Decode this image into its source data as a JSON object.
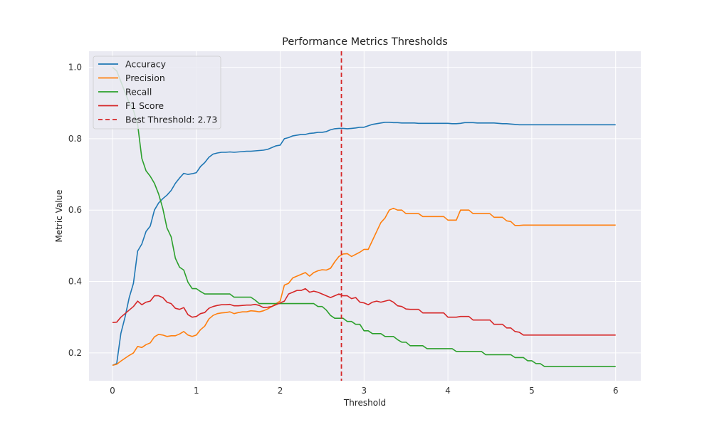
{
  "chart_data": {
    "type": "line",
    "title": "Performance Metrics Thresholds",
    "xlabel": "Threshold",
    "ylabel": "Metric Value",
    "xlim": [
      -0.28,
      6.3
    ],
    "ylim": [
      0.122,
      1.045
    ],
    "xticks": [
      0,
      1,
      2,
      3,
      4,
      5,
      6
    ],
    "xtick_labels": [
      "0",
      "1",
      "2",
      "3",
      "4",
      "5",
      "6"
    ],
    "yticks": [
      0.2,
      0.4,
      0.6,
      0.8,
      1.0
    ],
    "ytick_labels": [
      "0.2",
      "0.4",
      "0.6",
      "0.8",
      "1.0"
    ],
    "grid": true,
    "background": "#eaeaf2",
    "legend_position": "top-left",
    "x": [
      0.0,
      0.05,
      0.1,
      0.15,
      0.2,
      0.25,
      0.3,
      0.35,
      0.4,
      0.45,
      0.5,
      0.55,
      0.6,
      0.65,
      0.7,
      0.75,
      0.8,
      0.85,
      0.9,
      0.95,
      1.0,
      1.05,
      1.1,
      1.15,
      1.2,
      1.25,
      1.3,
      1.35,
      1.4,
      1.45,
      1.5,
      1.55,
      1.6,
      1.65,
      1.7,
      1.75,
      1.8,
      1.85,
      1.9,
      1.95,
      2.0,
      2.05,
      2.1,
      2.15,
      2.2,
      2.25,
      2.3,
      2.35,
      2.4,
      2.45,
      2.5,
      2.55,
      2.6,
      2.65,
      2.7,
      2.75,
      2.8,
      2.85,
      2.9,
      2.95,
      3.0,
      3.05,
      3.1,
      3.15,
      3.2,
      3.25,
      3.3,
      3.35,
      3.4,
      3.45,
      3.5,
      3.55,
      3.6,
      3.65,
      3.7,
      3.75,
      3.8,
      3.85,
      3.9,
      3.95,
      4.0,
      4.05,
      4.1,
      4.15,
      4.2,
      4.25,
      4.3,
      4.35,
      4.4,
      4.45,
      4.5,
      4.55,
      4.6,
      4.65,
      4.7,
      4.75,
      4.8,
      4.85,
      4.9,
      4.95,
      5.0,
      5.05,
      5.1,
      5.15,
      5.2,
      5.25,
      5.3,
      5.35,
      5.4,
      5.45,
      5.5,
      5.55,
      5.6,
      5.65,
      5.7,
      5.75,
      5.8,
      5.85,
      5.9,
      5.95,
      6.0
    ],
    "series": [
      {
        "name": "Accuracy",
        "color": "#1f77b4",
        "values": [
          0.165,
          0.17,
          0.255,
          0.3,
          0.355,
          0.395,
          0.485,
          0.505,
          0.54,
          0.555,
          0.6,
          0.62,
          0.632,
          0.642,
          0.655,
          0.675,
          0.69,
          0.703,
          0.7,
          0.702,
          0.705,
          0.722,
          0.733,
          0.748,
          0.757,
          0.76,
          0.762,
          0.762,
          0.763,
          0.762,
          0.763,
          0.764,
          0.765,
          0.765,
          0.766,
          0.767,
          0.768,
          0.77,
          0.775,
          0.78,
          0.782,
          0.8,
          0.803,
          0.808,
          0.81,
          0.812,
          0.812,
          0.815,
          0.816,
          0.818,
          0.818,
          0.82,
          0.825,
          0.828,
          0.829,
          0.829,
          0.828,
          0.829,
          0.83,
          0.832,
          0.832,
          0.836,
          0.84,
          0.842,
          0.844,
          0.846,
          0.846,
          0.845,
          0.845,
          0.844,
          0.844,
          0.844,
          0.844,
          0.843,
          0.843,
          0.843,
          0.843,
          0.843,
          0.843,
          0.843,
          0.843,
          0.842,
          0.842,
          0.843,
          0.845,
          0.845,
          0.845,
          0.844,
          0.844,
          0.844,
          0.844,
          0.844,
          0.843,
          0.842,
          0.842,
          0.841,
          0.84,
          0.839,
          0.839,
          0.839,
          0.839,
          0.839,
          0.839,
          0.839,
          0.839,
          0.839,
          0.839,
          0.839,
          0.839,
          0.839,
          0.839,
          0.839,
          0.839,
          0.839,
          0.839,
          0.839,
          0.839,
          0.839,
          0.839,
          0.839,
          0.839
        ]
      },
      {
        "name": "Precision",
        "color": "#ff7f0e",
        "values": [
          0.165,
          0.168,
          0.177,
          0.185,
          0.193,
          0.2,
          0.218,
          0.215,
          0.223,
          0.228,
          0.245,
          0.252,
          0.25,
          0.246,
          0.248,
          0.248,
          0.253,
          0.26,
          0.25,
          0.246,
          0.25,
          0.265,
          0.275,
          0.295,
          0.305,
          0.31,
          0.312,
          0.313,
          0.315,
          0.31,
          0.313,
          0.315,
          0.315,
          0.318,
          0.317,
          0.315,
          0.318,
          0.323,
          0.33,
          0.338,
          0.345,
          0.39,
          0.395,
          0.41,
          0.415,
          0.42,
          0.425,
          0.415,
          0.425,
          0.43,
          0.433,
          0.432,
          0.437,
          0.455,
          0.47,
          0.477,
          0.478,
          0.47,
          0.476,
          0.482,
          0.49,
          0.49,
          0.515,
          0.54,
          0.565,
          0.578,
          0.6,
          0.605,
          0.6,
          0.6,
          0.59,
          0.59,
          0.59,
          0.59,
          0.582,
          0.582,
          0.582,
          0.582,
          0.582,
          0.582,
          0.572,
          0.572,
          0.572,
          0.6,
          0.6,
          0.6,
          0.59,
          0.59,
          0.59,
          0.59,
          0.59,
          0.58,
          0.58,
          0.58,
          0.57,
          0.568,
          0.557,
          0.557,
          0.558,
          0.558,
          0.558,
          0.558,
          0.558,
          0.558,
          0.558,
          0.558,
          0.558,
          0.558,
          0.558,
          0.558,
          0.558,
          0.558,
          0.558,
          0.558,
          0.558,
          0.558,
          0.558,
          0.558,
          0.558,
          0.558,
          0.558
        ]
      },
      {
        "name": "Recall",
        "color": "#2ca02c",
        "values": [
          1.0,
          0.99,
          0.96,
          0.93,
          0.9,
          0.88,
          0.84,
          0.745,
          0.71,
          0.695,
          0.675,
          0.645,
          0.605,
          0.55,
          0.525,
          0.465,
          0.44,
          0.432,
          0.398,
          0.38,
          0.38,
          0.372,
          0.365,
          0.365,
          0.365,
          0.365,
          0.365,
          0.365,
          0.365,
          0.356,
          0.356,
          0.356,
          0.356,
          0.356,
          0.348,
          0.338,
          0.338,
          0.338,
          0.338,
          0.338,
          0.338,
          0.338,
          0.338,
          0.338,
          0.338,
          0.338,
          0.338,
          0.338,
          0.338,
          0.33,
          0.33,
          0.32,
          0.305,
          0.297,
          0.297,
          0.297,
          0.288,
          0.288,
          0.28,
          0.28,
          0.262,
          0.262,
          0.254,
          0.254,
          0.254,
          0.246,
          0.246,
          0.246,
          0.237,
          0.23,
          0.23,
          0.22,
          0.22,
          0.22,
          0.22,
          0.212,
          0.212,
          0.212,
          0.212,
          0.212,
          0.212,
          0.212,
          0.204,
          0.204,
          0.204,
          0.204,
          0.204,
          0.204,
          0.204,
          0.195,
          0.195,
          0.195,
          0.195,
          0.195,
          0.195,
          0.195,
          0.187,
          0.187,
          0.187,
          0.178,
          0.178,
          0.17,
          0.17,
          0.162,
          0.162,
          0.162,
          0.162,
          0.162,
          0.162,
          0.162,
          0.162,
          0.162,
          0.162,
          0.162,
          0.162,
          0.162,
          0.162,
          0.162,
          0.162,
          0.162,
          0.162
        ]
      },
      {
        "name": "F1 Score",
        "color": "#d62728",
        "values": [
          0.285,
          0.286,
          0.3,
          0.31,
          0.32,
          0.33,
          0.345,
          0.335,
          0.342,
          0.345,
          0.36,
          0.36,
          0.355,
          0.342,
          0.338,
          0.325,
          0.322,
          0.327,
          0.307,
          0.3,
          0.302,
          0.31,
          0.313,
          0.325,
          0.33,
          0.333,
          0.335,
          0.335,
          0.336,
          0.332,
          0.332,
          0.333,
          0.334,
          0.334,
          0.336,
          0.333,
          0.327,
          0.328,
          0.33,
          0.335,
          0.34,
          0.345,
          0.365,
          0.37,
          0.375,
          0.375,
          0.38,
          0.37,
          0.373,
          0.37,
          0.365,
          0.36,
          0.355,
          0.36,
          0.365,
          0.36,
          0.36,
          0.352,
          0.355,
          0.342,
          0.34,
          0.335,
          0.342,
          0.345,
          0.342,
          0.345,
          0.348,
          0.342,
          0.332,
          0.33,
          0.323,
          0.322,
          0.322,
          0.322,
          0.312,
          0.312,
          0.312,
          0.312,
          0.312,
          0.312,
          0.3,
          0.3,
          0.3,
          0.302,
          0.302,
          0.302,
          0.292,
          0.292,
          0.292,
          0.292,
          0.292,
          0.28,
          0.28,
          0.28,
          0.27,
          0.27,
          0.26,
          0.258,
          0.25,
          0.25,
          0.25,
          0.25,
          0.25,
          0.25,
          0.25,
          0.25,
          0.25,
          0.25,
          0.25,
          0.25,
          0.25,
          0.25,
          0.25,
          0.25,
          0.25,
          0.25,
          0.25,
          0.25,
          0.25,
          0.25,
          0.25
        ]
      }
    ],
    "vertical_line": {
      "label": "Best Threshold: 2.73",
      "x": 2.73,
      "color": "#d62728",
      "style": "dashed"
    },
    "legend": [
      "Accuracy",
      "Precision",
      "Recall",
      "F1 Score",
      "Best Threshold: 2.73"
    ]
  }
}
